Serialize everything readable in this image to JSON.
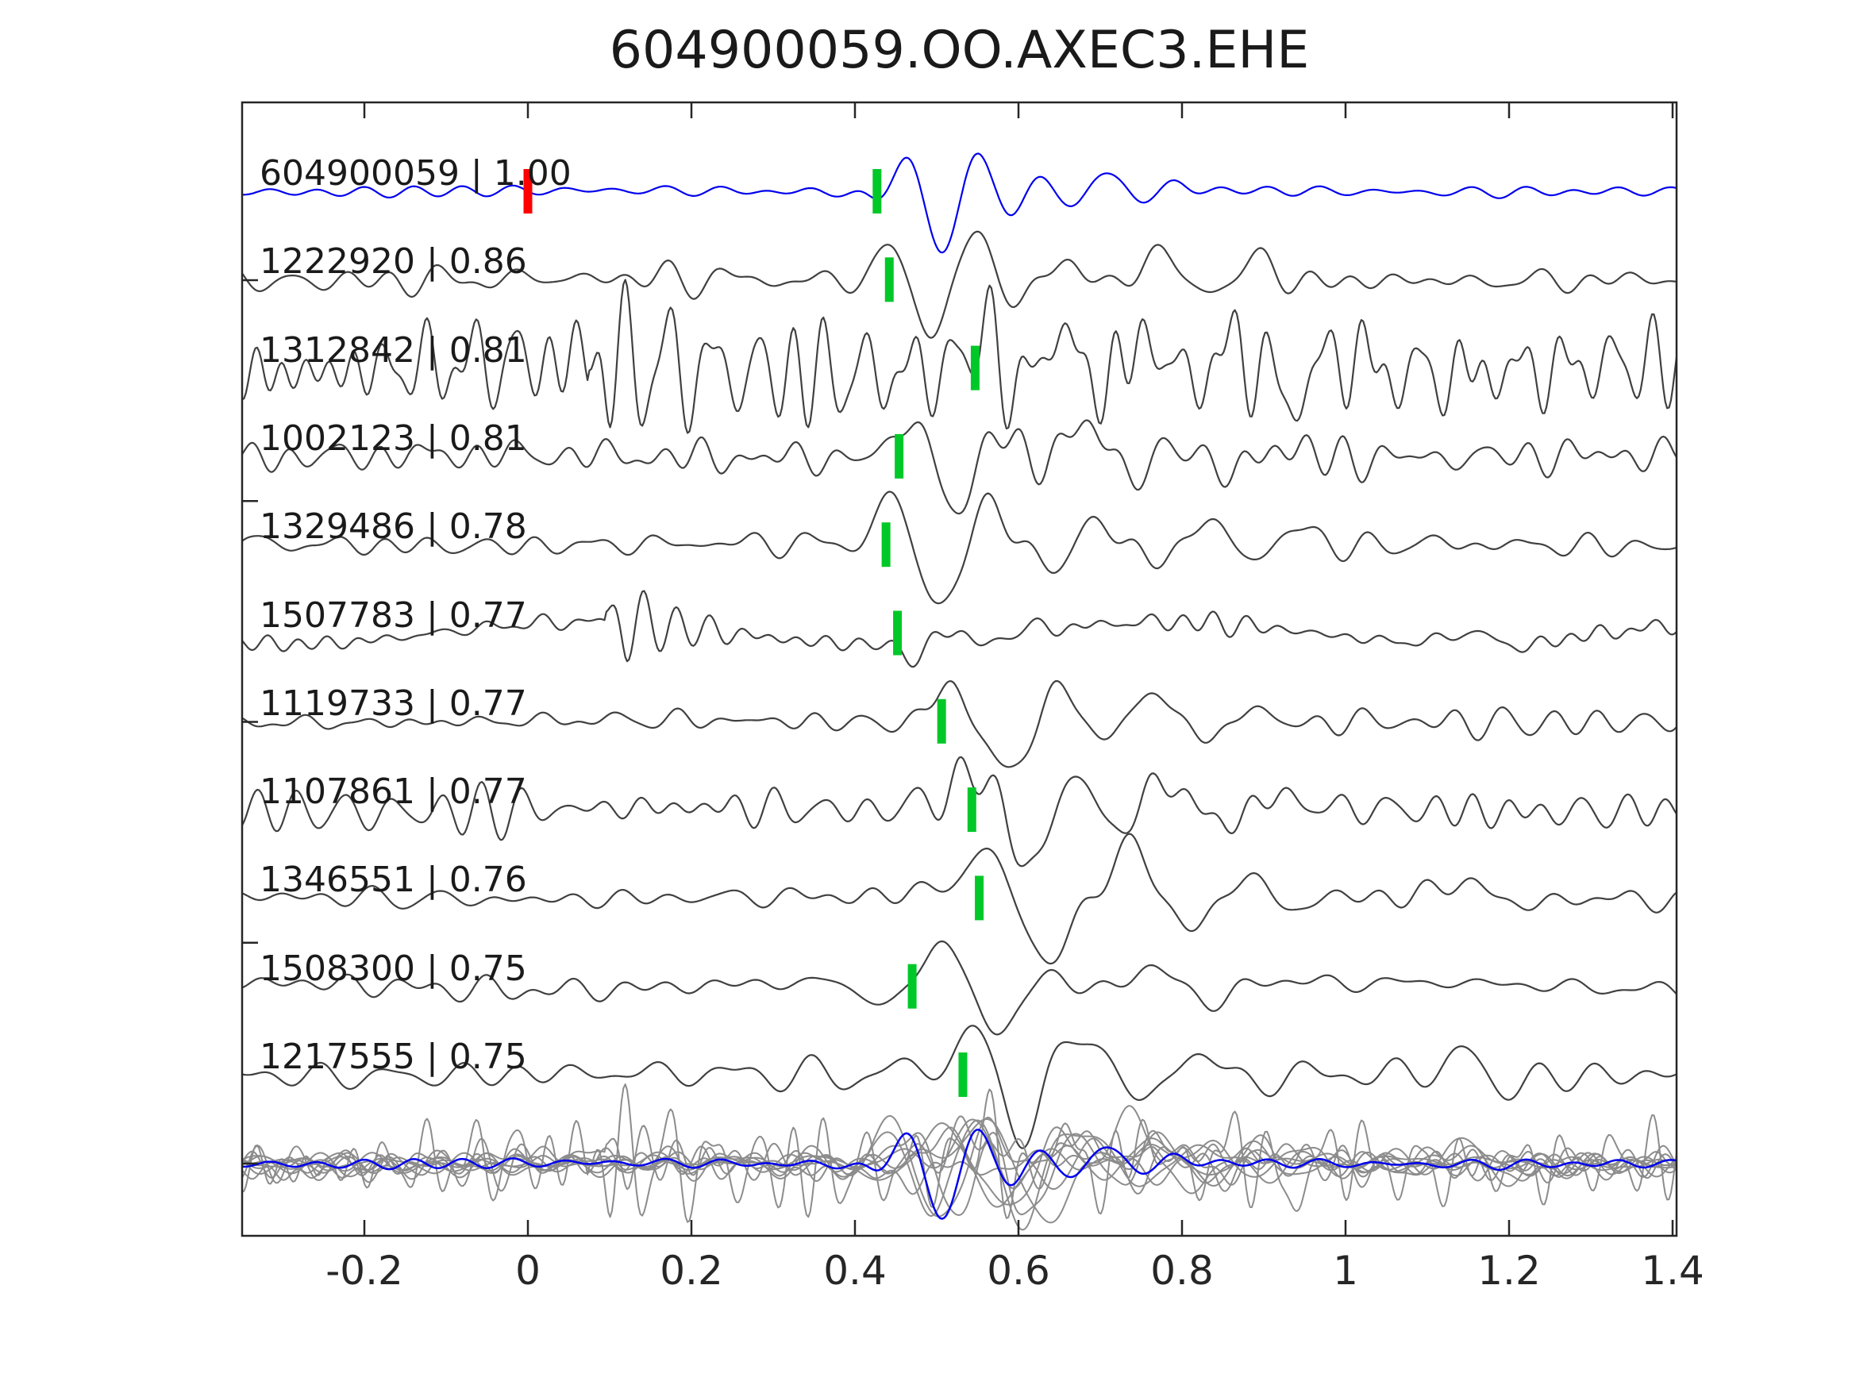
{
  "title": "604900059.OO.AXEC3.EHE",
  "colors": {
    "template_blue": "#0000ee",
    "detection_gray": "#404040",
    "overlay_gray": "#8c8c8c",
    "pick_green": "#00c828",
    "template_red": "#ff0000",
    "frame": "#262626",
    "text": "#1a1a1a",
    "background": "#ffffff"
  },
  "chart_data": {
    "type": "line",
    "title": "604900059.OO.AXEC3.EHE",
    "xlabel": "",
    "ylabel": "",
    "x_range": [
      -0.35,
      1.405
    ],
    "x_ticks": [
      -0.2,
      0,
      0.2,
      0.4,
      0.6,
      0.8,
      1,
      1.2,
      1.4
    ],
    "x_tick_labels": [
      "-0.2",
      "0",
      "0.2",
      "0.4",
      "0.6",
      "0.8",
      "1",
      "1.2",
      "1.4"
    ],
    "grid": false,
    "legend": false,
    "template_marker": {
      "trace_id": "604900059",
      "time": 0.0,
      "color_role": "template_red"
    },
    "bottom_row": "overlay of all traces (gray) with template trace (blue) on top",
    "traces": [
      {
        "id": "604900059",
        "cc": "1.00",
        "label": "604900059 | 1.00",
        "role": "template",
        "pick_time": 0.427,
        "seed": 11,
        "noise": 2.2,
        "nf": [
          10,
          24
        ],
        "wob": 1.2,
        "burst": null,
        "lobes": [
          [
            -12,
            0.428,
            0.018
          ],
          [
            48,
            0.465,
            0.022
          ],
          [
            -82,
            0.507,
            0.024
          ],
          [
            55,
            0.548,
            0.022
          ],
          [
            -32,
            0.59,
            0.02
          ],
          [
            20,
            0.628,
            0.02
          ],
          [
            -24,
            0.668,
            0.022
          ],
          [
            26,
            0.705,
            0.025
          ],
          [
            -14,
            0.748,
            0.02
          ],
          [
            8,
            0.79,
            0.02
          ]
        ]
      },
      {
        "id": "1222920",
        "cc": "0.86",
        "label": "1222920 | 0.86",
        "role": "detection",
        "pick_time": 0.442,
        "seed": 22,
        "noise": 6,
        "nf": [
          8,
          24
        ],
        "wob": 2,
        "burst": null,
        "lobes": [
          [
            45,
            0.445,
            0.022
          ],
          [
            -72,
            0.497,
            0.025
          ],
          [
            68,
            0.548,
            0.025
          ],
          [
            -35,
            0.6,
            0.022
          ],
          [
            28,
            0.66,
            0.025
          ],
          [
            -15,
            0.71,
            0.02
          ],
          [
            30,
            0.77,
            0.03
          ],
          [
            -18,
            0.835,
            0.025
          ],
          [
            22,
            0.9,
            0.03
          ],
          [
            -10,
            0.96,
            0.025
          ]
        ]
      },
      {
        "id": "1312842",
        "cc": "0.81",
        "label": "1312842 | 0.81",
        "role": "detection",
        "pick_time": 0.547,
        "seed": 33,
        "noise": 20,
        "nf": [
          16,
          34
        ],
        "wob": 8,
        "burst": {
          "t": 0.075,
          "f": 29,
          "a": 55,
          "decay": 0.12,
          "tail": 0.45
        },
        "lobes": [
          [
            50,
            0.555,
            0.02
          ],
          [
            -30,
            0.6,
            0.022
          ],
          [
            38,
            0.65,
            0.025
          ],
          [
            -30,
            0.7,
            0.025
          ],
          [
            26,
            0.755,
            0.025
          ],
          [
            -20,
            0.81,
            0.025
          ],
          [
            22,
            0.87,
            0.03
          ],
          [
            -35,
            0.93,
            0.03
          ],
          [
            25,
            1.0,
            0.03
          ]
        ]
      },
      {
        "id": "1002123",
        "cc": "0.81",
        "label": "1002123 | 0.81",
        "role": "detection",
        "pick_time": 0.454,
        "seed": 44,
        "noise": 8,
        "nf": [
          9,
          26
        ],
        "wob": 2,
        "burst": null,
        "lobes": [
          [
            55,
            0.47,
            0.022
          ],
          [
            -75,
            0.525,
            0.025
          ],
          [
            42,
            0.578,
            0.022
          ],
          [
            -20,
            0.625,
            0.02
          ],
          [
            45,
            0.685,
            0.03
          ],
          [
            -35,
            0.74,
            0.026
          ],
          [
            20,
            0.795,
            0.025
          ],
          [
            -25,
            0.855,
            0.028
          ],
          [
            15,
            0.915,
            0.03
          ]
        ]
      },
      {
        "id": "1329486",
        "cc": "0.78",
        "label": "1329486 | 0.78",
        "role": "detection",
        "pick_time": 0.438,
        "seed": 55,
        "noise": 7,
        "nf": [
          9,
          26
        ],
        "wob": 2,
        "burst": null,
        "lobes": [
          [
            60,
            0.445,
            0.024
          ],
          [
            -80,
            0.505,
            0.027
          ],
          [
            55,
            0.567,
            0.028
          ],
          [
            -30,
            0.635,
            0.024
          ],
          [
            30,
            0.7,
            0.028
          ],
          [
            -22,
            0.765,
            0.026
          ],
          [
            26,
            0.83,
            0.03
          ],
          [
            -16,
            0.89,
            0.026
          ],
          [
            18,
            0.95,
            0.03
          ],
          [
            -10,
            1.01,
            0.026
          ]
        ]
      },
      {
        "id": "1507783",
        "cc": "0.77",
        "label": "1507783 | 0.77",
        "role": "detection",
        "pick_time": 0.452,
        "seed": 66,
        "noise": 4,
        "nf": [
          14,
          30
        ],
        "wob": 14,
        "burst": {
          "t": 0.095,
          "f": 27,
          "a": 50,
          "decay": 0.075,
          "tail": 0.25
        },
        "lobes": [
          [
            -18,
            0.47,
            0.02
          ],
          [
            14,
            0.52,
            0.02
          ],
          [
            -12,
            0.565,
            0.02
          ],
          [
            8,
            0.61,
            0.02
          ],
          [
            14,
            1.15,
            0.04
          ],
          [
            -8,
            1.22,
            0.03
          ]
        ]
      },
      {
        "id": "1119733",
        "cc": "0.77",
        "label": "1119733 | 0.77",
        "role": "detection",
        "pick_time": 0.506,
        "seed": 77,
        "noise": 6.5,
        "nf": [
          10,
          26
        ],
        "wob": 2,
        "burst": null,
        "lobes": [
          [
            52,
            0.515,
            0.025
          ],
          [
            -62,
            0.585,
            0.03
          ],
          [
            40,
            0.65,
            0.026
          ],
          [
            -22,
            0.71,
            0.024
          ],
          [
            35,
            0.765,
            0.03
          ],
          [
            -25,
            0.83,
            0.028
          ],
          [
            14,
            0.89,
            0.026
          ],
          [
            -8,
            0.95,
            0.024
          ]
        ]
      },
      {
        "id": "1107861",
        "cc": "0.77",
        "label": "1107861 | 0.77",
        "role": "detection",
        "pick_time": 0.543,
        "seed": 88,
        "noise": 10,
        "nf": [
          13,
          28
        ],
        "wob": 3,
        "burst": null,
        "lobes": [
          [
            20,
            0.5,
            0.035
          ],
          [
            55,
            0.553,
            0.025
          ],
          [
            -70,
            0.613,
            0.028
          ],
          [
            45,
            0.668,
            0.026
          ],
          [
            -25,
            0.722,
            0.024
          ],
          [
            35,
            0.78,
            0.03
          ],
          [
            -20,
            0.85,
            0.028
          ],
          [
            15,
            0.92,
            0.028
          ]
        ]
      },
      {
        "id": "1346551",
        "cc": "0.76",
        "label": "1346551 | 0.76",
        "role": "detection",
        "pick_time": 0.552,
        "seed": 99,
        "noise": 5,
        "nf": [
          9,
          24
        ],
        "wob": 2,
        "burst": null,
        "lobes": [
          [
            12,
            0.5,
            0.04
          ],
          [
            60,
            0.558,
            0.028
          ],
          [
            -78,
            0.64,
            0.033
          ],
          [
            68,
            0.735,
            0.035
          ],
          [
            -40,
            0.81,
            0.03
          ],
          [
            25,
            0.875,
            0.03
          ],
          [
            -12,
            0.94,
            0.028
          ],
          [
            20,
            1.15,
            0.04
          ],
          [
            -14,
            1.21,
            0.03
          ]
        ]
      },
      {
        "id": "1508300",
        "cc": "0.75",
        "label": "1508300 | 0.75",
        "role": "detection",
        "pick_time": 0.47,
        "seed": 110,
        "noise": 4,
        "nf": [
          8,
          22
        ],
        "wob": 5,
        "burst": null,
        "lobes": [
          [
            -30,
            0.435,
            0.028
          ],
          [
            62,
            0.505,
            0.025
          ],
          [
            -55,
            0.575,
            0.03
          ],
          [
            20,
            0.64,
            0.025
          ],
          [
            28,
            0.76,
            0.035
          ],
          [
            -16,
            0.84,
            0.03
          ],
          [
            10,
            0.92,
            0.03
          ]
        ]
      },
      {
        "id": "1217555",
        "cc": "0.75",
        "label": "1217555 | 0.75",
        "role": "detection",
        "pick_time": 0.532,
        "seed": 121,
        "noise": 7,
        "nf": [
          9,
          25
        ],
        "wob": 2,
        "burst": null,
        "lobes": [
          [
            15,
            0.48,
            0.03
          ],
          [
            55,
            0.545,
            0.027
          ],
          [
            -70,
            0.605,
            0.028
          ],
          [
            58,
            0.68,
            0.03
          ],
          [
            -35,
            0.75,
            0.028
          ],
          [
            25,
            0.82,
            0.03
          ],
          [
            -15,
            0.89,
            0.027
          ],
          [
            25,
            1.14,
            0.035
          ],
          [
            -15,
            1.2,
            0.03
          ]
        ]
      }
    ]
  }
}
